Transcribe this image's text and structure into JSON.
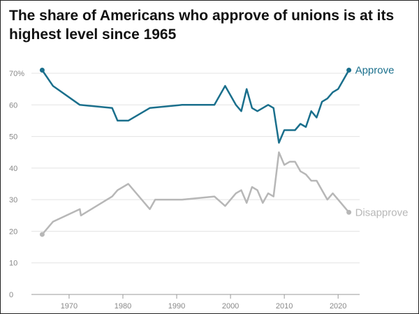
{
  "chart_data": {
    "type": "line",
    "title": "The share of Americans who approve of unions is at its highest level since 1965",
    "xlabel": "",
    "ylabel": "",
    "xlim": [
      1963,
      2024
    ],
    "ylim": [
      0,
      70
    ],
    "y_ticks": [
      0,
      10,
      20,
      30,
      40,
      50,
      60,
      70
    ],
    "y_tick_labels": [
      "0",
      "10",
      "20",
      "30",
      "40",
      "50",
      "60",
      "70%"
    ],
    "x_ticks": [
      1970,
      1980,
      1990,
      2000,
      2010,
      2020
    ],
    "x_tick_labels": [
      "1970",
      "1980",
      "1990",
      "2000",
      "2010",
      "2020"
    ],
    "grid": "horizontal",
    "legend": "direct labels at line ends",
    "series": [
      {
        "name": "Approve",
        "color": "#1a6f8c",
        "x": [
          1965,
          1967,
          1972,
          1978,
          1979,
          1981,
          1985,
          1991,
          1997,
          1999,
          2001,
          2002,
          2003,
          2004,
          2005,
          2006,
          2007,
          2008,
          2009,
          2010,
          2011,
          2012,
          2013,
          2014,
          2015,
          2016,
          2017,
          2018,
          2019,
          2020,
          2021,
          2022
        ],
        "values": [
          71,
          66,
          60,
          59,
          55,
          55,
          59,
          60,
          60,
          66,
          60,
          58,
          65,
          59,
          58,
          59,
          60,
          59,
          48,
          52,
          52,
          52,
          54,
          53,
          58,
          56,
          61,
          62,
          64,
          65,
          68,
          71
        ]
      },
      {
        "name": "Disapprove",
        "color": "#b7b7b7",
        "x": [
          1965,
          1967,
          1972,
          1972.2,
          1978,
          1979,
          1981,
          1985,
          1986,
          1991,
          1997,
          1999,
          2001,
          2002,
          2003,
          2004,
          2005,
          2006,
          2007,
          2008,
          2009,
          2010,
          2011,
          2012,
          2013,
          2014,
          2015,
          2016,
          2017,
          2018,
          2019,
          2020,
          2021,
          2022
        ],
        "values": [
          19,
          23,
          27,
          25,
          31,
          33,
          35,
          27,
          30,
          30,
          31,
          28,
          32,
          33,
          29,
          34,
          33,
          29,
          32,
          31,
          45,
          41,
          42,
          42,
          39,
          38,
          36,
          36,
          33,
          30,
          32,
          30,
          28,
          26
        ]
      }
    ]
  }
}
